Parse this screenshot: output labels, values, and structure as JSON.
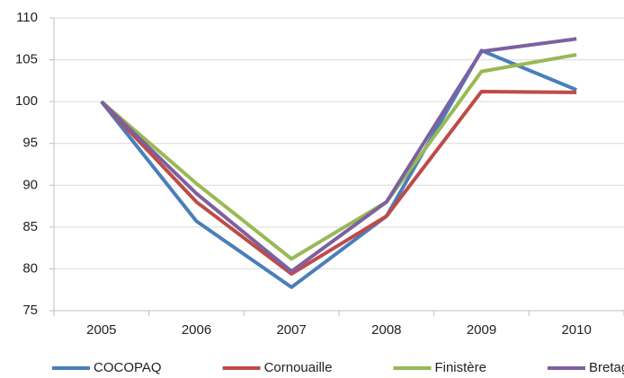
{
  "chart_data": {
    "type": "line",
    "categories": [
      "2005",
      "2006",
      "2007",
      "2008",
      "2009",
      "2010"
    ],
    "series": [
      {
        "name": "COCOPAQ",
        "color": "#4a7ebb",
        "values": [
          100,
          85.7,
          77.8,
          86.3,
          106.1,
          101.4
        ]
      },
      {
        "name": "Cornouaille",
        "color": "#be4b48",
        "values": [
          100,
          88,
          79.4,
          86.3,
          101.2,
          101.1
        ]
      },
      {
        "name": "Finistère",
        "color": "#98b954",
        "values": [
          100,
          90.2,
          81.2,
          88,
          103.6,
          105.6
        ]
      },
      {
        "name": "Bretagne",
        "color": "#7d60a0",
        "values": [
          100,
          89,
          79.7,
          88,
          106,
          107.5
        ]
      }
    ],
    "ylim": [
      75,
      110
    ],
    "yticks": [
      75,
      80,
      85,
      90,
      95,
      100,
      105,
      110
    ],
    "grid": true,
    "legend": "bottom"
  }
}
